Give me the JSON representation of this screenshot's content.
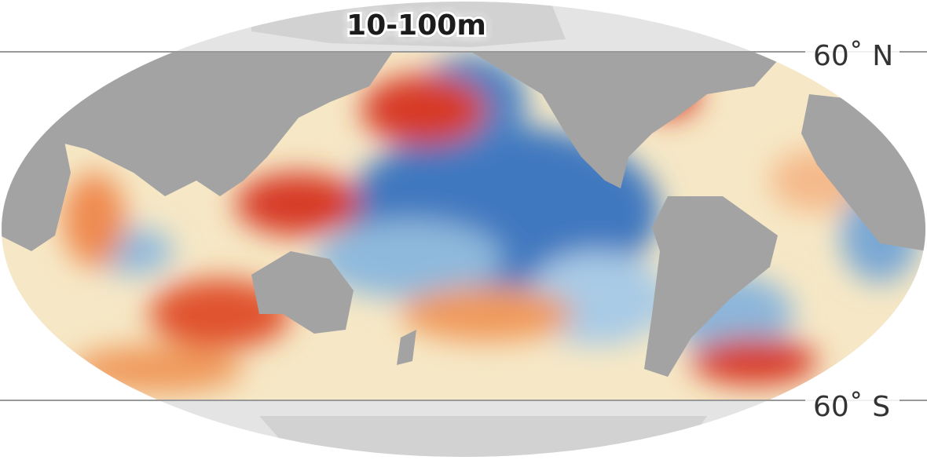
{
  "title": "10-100m",
  "labels": {
    "north": "60˚ N",
    "south": "60˚ S"
  }
}
